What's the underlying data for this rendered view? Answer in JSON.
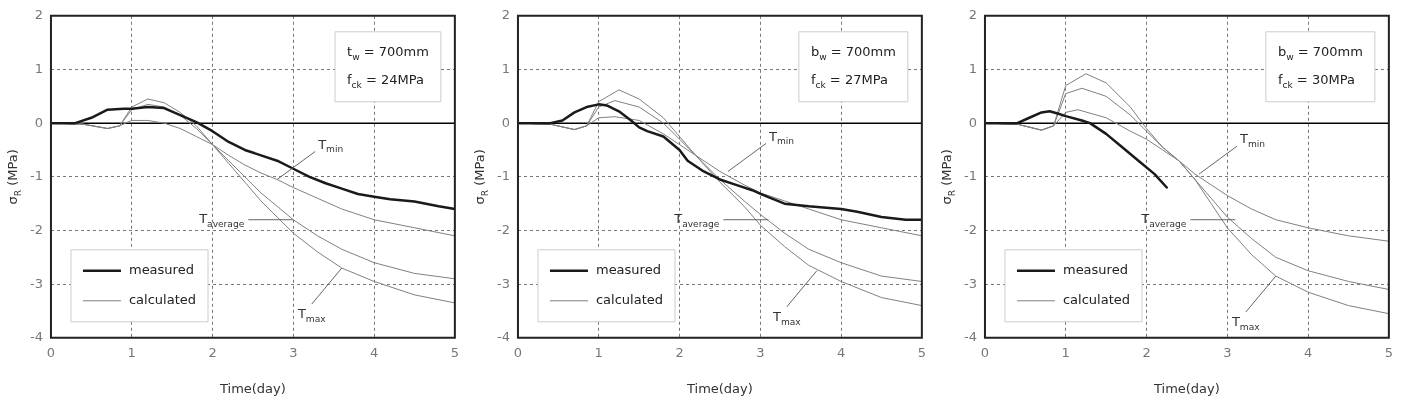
{
  "chart_data": [
    {
      "type": "line",
      "xlabel": "Time(day)",
      "ylabel": "σ$_{R}$ (MPa)",
      "xlim": [
        0,
        5
      ],
      "xticks": [
        0,
        1,
        2,
        3,
        4,
        5
      ],
      "ylim": [
        -4,
        2
      ],
      "yticks": [
        -4,
        -3,
        -2,
        -1,
        0,
        1,
        2
      ],
      "grid": true,
      "legend": "bottom left",
      "series": [
        {
          "name": "measured",
          "color": "#1a1a1a",
          "x": [
            0,
            0.3,
            0.5,
            0.7,
            0.9,
            1.0,
            1.2,
            1.4,
            1.6,
            1.8,
            2.0,
            2.2,
            2.4,
            2.6,
            2.8,
            3.0,
            3.2,
            3.4,
            3.6,
            3.8,
            4.0,
            4.2,
            4.5,
            4.8,
            5
          ],
          "values": [
            0,
            0,
            0.1,
            0.25,
            0.27,
            0.27,
            0.3,
            0.28,
            0.15,
            0.02,
            -0.15,
            -0.35,
            -0.5,
            -0.6,
            -0.7,
            -0.85,
            -1.0,
            -1.12,
            -1.22,
            -1.32,
            -1.37,
            -1.42,
            -1.46,
            -1.55,
            -1.6
          ]
        },
        {
          "name": "calculated",
          "color": "#808080",
          "x": [
            0,
            0.4,
            0.7,
            0.85,
            1.0,
            1.2,
            1.4,
            1.6,
            1.8,
            2.0,
            2.2,
            2.4,
            2.6,
            2.8,
            3.0,
            3.3,
            3.6,
            4.0,
            4.5,
            5
          ],
          "values": [
            0,
            -0.02,
            -0.1,
            -0.05,
            0.05,
            0.05,
            0.0,
            -0.1,
            -0.25,
            -0.4,
            -0.6,
            -0.78,
            -0.93,
            -1.05,
            -1.2,
            -1.4,
            -1.6,
            -1.8,
            -1.95,
            -2.1
          ]
        },
        {
          "color": "#808080",
          "x": [
            0,
            0.4,
            0.7,
            0.85,
            1.0,
            1.2,
            1.4,
            1.6,
            1.8,
            2.0,
            2.2,
            2.4,
            2.6,
            2.8,
            3.0,
            3.3,
            3.6,
            4.0,
            4.5,
            5
          ],
          "values": [
            0,
            -0.02,
            -0.1,
            -0.05,
            0.25,
            0.35,
            0.3,
            0.15,
            -0.1,
            -0.4,
            -0.7,
            -1.0,
            -1.3,
            -1.55,
            -1.8,
            -2.1,
            -2.35,
            -2.6,
            -2.8,
            -2.9
          ]
        },
        {
          "color": "#808080",
          "x": [
            0,
            0.4,
            0.7,
            0.85,
            1.0,
            1.2,
            1.4,
            1.6,
            1.8,
            2.0,
            2.2,
            2.4,
            2.6,
            2.8,
            3.0,
            3.3,
            3.6,
            4.0,
            4.5,
            5
          ],
          "values": [
            0,
            -0.02,
            -0.1,
            -0.05,
            0.3,
            0.45,
            0.38,
            0.2,
            -0.05,
            -0.4,
            -0.75,
            -1.1,
            -1.45,
            -1.75,
            -2.05,
            -2.4,
            -2.7,
            -2.95,
            -3.2,
            -3.35
          ]
        }
      ],
      "ref_lines": [
        {
          "axis": "y",
          "value": 0,
          "color": "#000000"
        }
      ],
      "annotations": [
        "t$_{w}$ = 700mm",
        "f$_{ck}$ = 24MPa",
        {
          "text": "T$_{min}$",
          "x": 2.8,
          "y": -1.05
        },
        {
          "text": "T$_{average}$",
          "x": 3.0,
          "y": -1.8
        },
        {
          "text": "T$_{max}$",
          "x": 3.6,
          "y": -2.7
        }
      ]
    },
    {
      "type": "line",
      "xlabel": "Time(day)",
      "ylabel": "σ$_{R}$ (MPa)",
      "xlim": [
        0,
        5
      ],
      "xticks": [
        0,
        1,
        2,
        3,
        4,
        5
      ],
      "ylim": [
        -4,
        2
      ],
      "yticks": [
        -4,
        -3,
        -2,
        -1,
        0,
        1,
        2
      ],
      "grid": true,
      "legend": "bottom left",
      "series": [
        {
          "name": "measured",
          "color": "#1a1a1a",
          "x": [
            0,
            0.4,
            0.55,
            0.7,
            0.85,
            1.0,
            1.1,
            1.25,
            1.4,
            1.5,
            1.6,
            1.8,
            2.0,
            2.1,
            2.3,
            2.5,
            2.7,
            2.9,
            3.1,
            3.3,
            3.6,
            4.0,
            4.2,
            4.5,
            4.8,
            5
          ],
          "values": [
            0,
            0,
            0.05,
            0.2,
            0.3,
            0.35,
            0.33,
            0.22,
            0.05,
            -0.08,
            -0.15,
            -0.25,
            -0.5,
            -0.7,
            -0.9,
            -1.05,
            -1.15,
            -1.25,
            -1.38,
            -1.5,
            -1.55,
            -1.6,
            -1.65,
            -1.75,
            -1.8,
            -1.8
          ]
        },
        {
          "name": "calculated",
          "color": "#808080",
          "x": [
            0,
            0.4,
            0.7,
            0.85,
            1.0,
            1.2,
            1.5,
            1.8,
            2.0,
            2.2,
            2.5,
            2.8,
            3.0,
            3.3,
            3.6,
            4.0,
            4.5,
            5
          ],
          "values": [
            0,
            -0.02,
            -0.12,
            -0.05,
            0.1,
            0.12,
            0.05,
            -0.2,
            -0.4,
            -0.6,
            -0.9,
            -1.15,
            -1.3,
            -1.45,
            -1.6,
            -1.8,
            -1.95,
            -2.1
          ]
        },
        {
          "color": "#808080",
          "x": [
            0,
            0.4,
            0.7,
            0.85,
            1.0,
            1.2,
            1.5,
            1.8,
            2.0,
            2.2,
            2.5,
            2.8,
            3.0,
            3.3,
            3.6,
            4.0,
            4.5,
            5
          ],
          "values": [
            0,
            -0.02,
            -0.12,
            -0.05,
            0.3,
            0.42,
            0.3,
            0.0,
            -0.3,
            -0.6,
            -1.05,
            -1.45,
            -1.7,
            -2.05,
            -2.35,
            -2.6,
            -2.85,
            -2.95
          ]
        },
        {
          "color": "#808080",
          "x": [
            0,
            0.4,
            0.7,
            0.85,
            1.0,
            1.25,
            1.5,
            1.8,
            2.0,
            2.2,
            2.5,
            2.8,
            3.0,
            3.3,
            3.6,
            4.0,
            4.5,
            5
          ],
          "values": [
            0,
            -0.02,
            -0.12,
            -0.05,
            0.4,
            0.62,
            0.45,
            0.1,
            -0.25,
            -0.6,
            -1.1,
            -1.55,
            -1.9,
            -2.3,
            -2.65,
            -2.95,
            -3.25,
            -3.4
          ]
        }
      ],
      "ref_lines": [
        {
          "axis": "y",
          "value": 0,
          "color": "#000000"
        }
      ],
      "annotations": [
        "b$_{w}$ = 700mm",
        "f$_{ck}$ = 27MPa",
        {
          "text": "T$_{min}$",
          "x": 2.6,
          "y": -0.9
        },
        {
          "text": "T$_{average}$",
          "x": 3.1,
          "y": -1.8
        },
        {
          "text": "T$_{max}$",
          "x": 3.7,
          "y": -2.75
        }
      ]
    },
    {
      "type": "line",
      "xlabel": "Time(day)",
      "ylabel": "σ$_{R}$ (MPa)",
      "xlim": [
        0,
        5
      ],
      "xticks": [
        0,
        1,
        2,
        3,
        4,
        5
      ],
      "ylim": [
        -4,
        2
      ],
      "yticks": [
        -4,
        -3,
        -2,
        -1,
        0,
        1,
        2
      ],
      "grid": true,
      "legend": "bottom left",
      "series": [
        {
          "name": "measured",
          "color": "#1a1a1a",
          "x": [
            0,
            0.4,
            0.55,
            0.7,
            0.8,
            0.9,
            1.0,
            1.2,
            1.3,
            1.5,
            1.7,
            1.9,
            2.1,
            2.25
          ],
          "values": [
            0,
            0,
            0.1,
            0.2,
            0.22,
            0.18,
            0.13,
            0.05,
            0.0,
            -0.2,
            -0.45,
            -0.7,
            -0.95,
            -1.2
          ]
        },
        {
          "name": "calculated",
          "color": "#808080",
          "x": [
            0,
            0.4,
            0.7,
            0.85,
            1.0,
            1.15,
            1.5,
            1.8,
            2.0,
            2.2,
            2.4,
            2.6,
            2.8,
            3.0,
            3.3,
            3.6,
            4.0,
            4.5,
            5
          ],
          "values": [
            0,
            -0.02,
            -0.13,
            -0.05,
            0.2,
            0.25,
            0.1,
            -0.15,
            -0.3,
            -0.5,
            -0.7,
            -0.95,
            -1.15,
            -1.35,
            -1.6,
            -1.8,
            -1.95,
            -2.1,
            -2.2
          ]
        },
        {
          "color": "#808080",
          "x": [
            0,
            0.4,
            0.7,
            0.85,
            1.0,
            1.2,
            1.5,
            1.8,
            2.0,
            2.2,
            2.4,
            2.6,
            2.8,
            3.0,
            3.3,
            3.6,
            4.0,
            4.5,
            5
          ],
          "values": [
            0,
            -0.02,
            -0.13,
            -0.05,
            0.55,
            0.65,
            0.5,
            0.15,
            -0.15,
            -0.45,
            -0.7,
            -1.05,
            -1.4,
            -1.75,
            -2.15,
            -2.5,
            -2.75,
            -2.95,
            -3.1
          ]
        },
        {
          "color": "#808080",
          "x": [
            0,
            0.4,
            0.7,
            0.85,
            1.0,
            1.25,
            1.5,
            1.8,
            2.0,
            2.2,
            2.4,
            2.6,
            2.8,
            3.0,
            3.3,
            3.6,
            4.0,
            4.5,
            5
          ],
          "values": [
            0,
            -0.02,
            -0.13,
            -0.05,
            0.7,
            0.92,
            0.75,
            0.3,
            -0.1,
            -0.45,
            -0.7,
            -1.05,
            -1.5,
            -1.95,
            -2.45,
            -2.85,
            -3.15,
            -3.4,
            -3.55
          ]
        }
      ],
      "ref_lines": [
        {
          "axis": "y",
          "value": 0,
          "color": "#000000"
        }
      ],
      "annotations": [
        "b$_{w}$ = 700mm",
        "f$_{ck}$ = 30MPa",
        {
          "text": "T$_{min}$",
          "x": 2.65,
          "y": -0.95
        },
        {
          "text": "T$_{average}$",
          "x": 3.1,
          "y": -1.8
        },
        {
          "text": "T$_{max}$",
          "x": 3.6,
          "y": -2.85
        }
      ]
    }
  ]
}
